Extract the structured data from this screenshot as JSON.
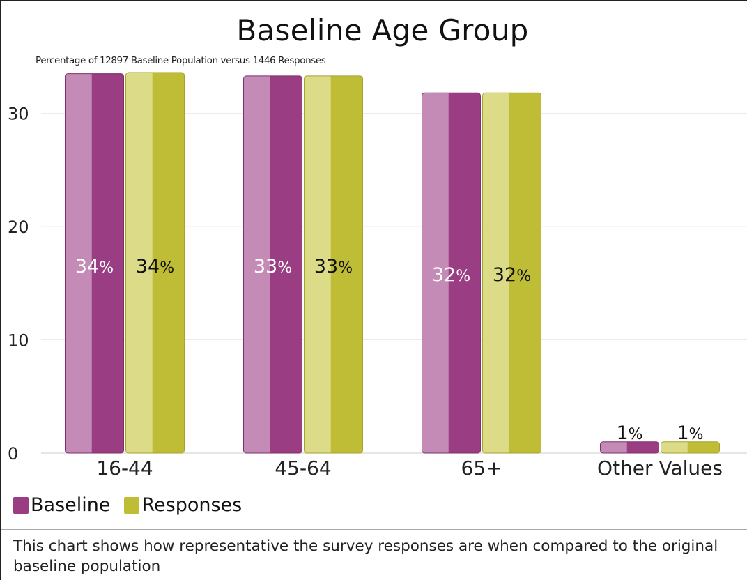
{
  "chart": {
    "title": "Baseline Age Group",
    "subtitle": "Percentage of 12897 Baseline Population versus 1446 Responses",
    "footnote": "This chart shows how representative the survey responses are when compared to the original baseline population"
  },
  "colors": {
    "baseline": "#9a3d82",
    "responses": "#bfbd36"
  },
  "chart_data": {
    "type": "bar",
    "title": "Baseline Age Group",
    "subtitle": "Percentage of 12897 Baseline Population versus 1446 Responses",
    "categories": [
      "16-44",
      "45-64",
      "65+",
      "Other Values"
    ],
    "series": [
      {
        "name": "Baseline",
        "values": [
          33.5,
          33.3,
          31.8,
          1.0
        ],
        "labels": [
          "34%",
          "33%",
          "32%",
          "1%"
        ]
      },
      {
        "name": "Responses",
        "values": [
          33.6,
          33.3,
          31.8,
          1.0
        ],
        "labels": [
          "34%",
          "33%",
          "32%",
          "1%"
        ]
      }
    ],
    "yticks": [
      "0",
      "10",
      "20",
      "30"
    ],
    "ylim": [
      0,
      35
    ],
    "xlabel": "",
    "ylabel": "",
    "grid": true,
    "legend": "bottom-left"
  }
}
